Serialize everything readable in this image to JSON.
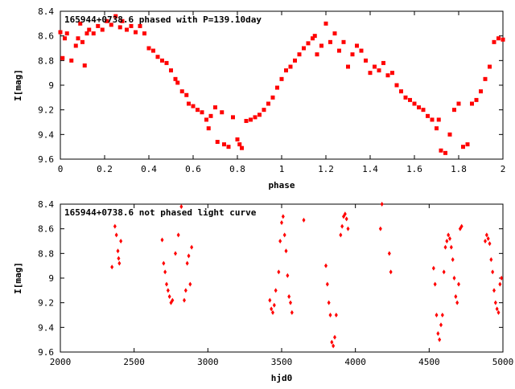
{
  "chart_data": [
    {
      "type": "scatter",
      "title": "165944+0738.6 phased with P=139.10day",
      "xlabel": "phase",
      "ylabel": "I[mag]",
      "xlim": [
        0,
        2
      ],
      "ylim": [
        9.6,
        8.4
      ],
      "y_inverted": true,
      "xticks": [
        0,
        0.2,
        0.4,
        0.6,
        0.8,
        1,
        1.2,
        1.4,
        1.6,
        1.8,
        2
      ],
      "xtick_labels": [
        "0",
        "0.2",
        "0.4",
        "0.6",
        "0.8",
        "1",
        "1.2",
        "1.4",
        "1.6",
        "1.8",
        "2"
      ],
      "yticks": [
        8.4,
        8.6,
        8.8,
        9.0,
        9.2,
        9.4,
        9.6
      ],
      "ytick_labels": [
        "8.4",
        "8.6",
        "8.8",
        "9",
        "9.2",
        "9.4",
        "9.6"
      ],
      "grid": false,
      "marker_color": "#ff0000",
      "marker": "square",
      "points": [
        [
          0.0,
          8.57
        ],
        [
          0.01,
          8.78
        ],
        [
          0.02,
          8.62
        ],
        [
          0.03,
          8.58
        ],
        [
          0.05,
          8.8
        ],
        [
          0.07,
          8.68
        ],
        [
          0.08,
          8.62
        ],
        [
          0.09,
          8.5
        ],
        [
          0.1,
          8.65
        ],
        [
          0.11,
          8.84
        ],
        [
          0.12,
          8.58
        ],
        [
          0.13,
          8.55
        ],
        [
          0.15,
          8.58
        ],
        [
          0.17,
          8.52
        ],
        [
          0.19,
          8.55
        ],
        [
          0.21,
          8.48
        ],
        [
          0.23,
          8.51
        ],
        [
          0.25,
          8.44
        ],
        [
          0.27,
          8.53
        ],
        [
          0.28,
          8.48
        ],
        [
          0.3,
          8.55
        ],
        [
          0.32,
          8.52
        ],
        [
          0.34,
          8.57
        ],
        [
          0.36,
          8.52
        ],
        [
          0.38,
          8.58
        ],
        [
          0.4,
          8.7
        ],
        [
          0.42,
          8.72
        ],
        [
          0.44,
          8.77
        ],
        [
          0.46,
          8.8
        ],
        [
          0.48,
          8.82
        ],
        [
          0.5,
          8.88
        ],
        [
          0.52,
          8.95
        ],
        [
          0.53,
          8.98
        ],
        [
          0.55,
          9.05
        ],
        [
          0.57,
          9.08
        ],
        [
          0.58,
          9.15
        ],
        [
          0.6,
          9.17
        ],
        [
          0.62,
          9.2
        ],
        [
          0.64,
          9.22
        ],
        [
          0.66,
          9.28
        ],
        [
          0.67,
          9.35
        ],
        [
          0.68,
          9.25
        ],
        [
          0.7,
          9.18
        ],
        [
          0.71,
          9.46
        ],
        [
          0.73,
          9.22
        ],
        [
          0.74,
          9.48
        ],
        [
          0.76,
          9.5
        ],
        [
          0.78,
          9.26
        ],
        [
          0.8,
          9.44
        ],
        [
          0.81,
          9.48
        ],
        [
          0.82,
          9.51
        ],
        [
          0.84,
          9.29
        ],
        [
          0.86,
          9.28
        ],
        [
          0.88,
          9.26
        ],
        [
          0.9,
          9.24
        ],
        [
          0.92,
          9.2
        ],
        [
          0.94,
          9.15
        ],
        [
          0.96,
          9.1
        ],
        [
          0.98,
          9.02
        ],
        [
          1.0,
          8.95
        ],
        [
          1.02,
          8.88
        ],
        [
          1.04,
          8.85
        ],
        [
          1.06,
          8.8
        ],
        [
          1.08,
          8.75
        ],
        [
          1.1,
          8.7
        ],
        [
          1.12,
          8.66
        ],
        [
          1.14,
          8.62
        ],
        [
          1.15,
          8.6
        ],
        [
          1.16,
          8.75
        ],
        [
          1.18,
          8.68
        ],
        [
          1.2,
          8.5
        ],
        [
          1.22,
          8.65
        ],
        [
          1.24,
          8.58
        ],
        [
          1.26,
          8.72
        ],
        [
          1.28,
          8.65
        ],
        [
          1.3,
          8.85
        ],
        [
          1.32,
          8.75
        ],
        [
          1.34,
          8.68
        ],
        [
          1.36,
          8.72
        ],
        [
          1.38,
          8.8
        ],
        [
          1.4,
          8.9
        ],
        [
          1.42,
          8.85
        ],
        [
          1.44,
          8.88
        ],
        [
          1.46,
          8.82
        ],
        [
          1.48,
          8.92
        ],
        [
          1.5,
          8.9
        ],
        [
          1.52,
          9.0
        ],
        [
          1.54,
          9.05
        ],
        [
          1.56,
          9.1
        ],
        [
          1.58,
          9.12
        ],
        [
          1.6,
          9.15
        ],
        [
          1.62,
          9.18
        ],
        [
          1.64,
          9.2
        ],
        [
          1.66,
          9.25
        ],
        [
          1.68,
          9.28
        ],
        [
          1.7,
          9.35
        ],
        [
          1.71,
          9.28
        ],
        [
          1.72,
          9.53
        ],
        [
          1.74,
          9.55
        ],
        [
          1.76,
          9.4
        ],
        [
          1.78,
          9.2
        ],
        [
          1.8,
          9.15
        ],
        [
          1.82,
          9.5
        ],
        [
          1.84,
          9.48
        ],
        [
          1.86,
          9.15
        ],
        [
          1.88,
          9.12
        ],
        [
          1.9,
          9.05
        ],
        [
          1.92,
          8.95
        ],
        [
          1.94,
          8.85
        ],
        [
          1.96,
          8.65
        ],
        [
          1.98,
          8.62
        ],
        [
          2.0,
          8.63
        ]
      ]
    },
    {
      "type": "scatter",
      "title": "165944+0738.6 not phased light curve",
      "xlabel": "hjd0",
      "ylabel": "I[mag]",
      "xlim": [
        2000,
        5000
      ],
      "ylim": [
        9.6,
        8.4
      ],
      "y_inverted": true,
      "xticks": [
        2000,
        2500,
        3000,
        3500,
        4000,
        4500,
        5000
      ],
      "xtick_labels": [
        "2000",
        "2500",
        "3000",
        "3500",
        "4000",
        "4500",
        "5000"
      ],
      "yticks": [
        8.4,
        8.6,
        8.8,
        9.0,
        9.2,
        9.4,
        9.6
      ],
      "ytick_labels": [
        "8.4",
        "8.6",
        "8.8",
        "9",
        "9.2",
        "9.4",
        "9.6"
      ],
      "grid": false,
      "marker_color": "#ff0000",
      "marker": "diamond",
      "points": [
        [
          2350,
          8.91
        ],
        [
          2370,
          8.58
        ],
        [
          2380,
          8.65
        ],
        [
          2390,
          8.78
        ],
        [
          2395,
          8.84
        ],
        [
          2400,
          8.88
        ],
        [
          2410,
          8.7
        ],
        [
          2690,
          8.69
        ],
        [
          2700,
          8.88
        ],
        [
          2710,
          8.95
        ],
        [
          2720,
          9.05
        ],
        [
          2730,
          9.1
        ],
        [
          2740,
          9.15
        ],
        [
          2750,
          9.2
        ],
        [
          2760,
          9.18
        ],
        [
          2780,
          8.8
        ],
        [
          2800,
          8.65
        ],
        [
          2820,
          8.42
        ],
        [
          2840,
          9.18
        ],
        [
          2850,
          9.1
        ],
        [
          2860,
          8.88
        ],
        [
          2870,
          8.82
        ],
        [
          2880,
          9.05
        ],
        [
          2890,
          8.75
        ],
        [
          3420,
          9.18
        ],
        [
          3430,
          9.25
        ],
        [
          3440,
          9.28
        ],
        [
          3450,
          9.22
        ],
        [
          3460,
          9.1
        ],
        [
          3480,
          8.95
        ],
        [
          3490,
          8.7
        ],
        [
          3500,
          8.55
        ],
        [
          3510,
          8.5
        ],
        [
          3520,
          8.65
        ],
        [
          3530,
          8.78
        ],
        [
          3540,
          8.98
        ],
        [
          3550,
          9.15
        ],
        [
          3560,
          9.2
        ],
        [
          3570,
          9.28
        ],
        [
          3650,
          8.53
        ],
        [
          3800,
          8.9
        ],
        [
          3810,
          9.05
        ],
        [
          3820,
          9.2
        ],
        [
          3830,
          9.3
        ],
        [
          3840,
          9.52
        ],
        [
          3850,
          9.55
        ],
        [
          3860,
          9.48
        ],
        [
          3870,
          9.3
        ],
        [
          3900,
          8.65
        ],
        [
          3910,
          8.58
        ],
        [
          3920,
          8.5
        ],
        [
          3930,
          8.48
        ],
        [
          3940,
          8.52
        ],
        [
          3950,
          8.6
        ],
        [
          4170,
          8.6
        ],
        [
          4180,
          8.4
        ],
        [
          4230,
          8.8
        ],
        [
          4240,
          8.95
        ],
        [
          4530,
          8.92
        ],
        [
          4540,
          9.05
        ],
        [
          4550,
          9.3
        ],
        [
          4560,
          9.45
        ],
        [
          4570,
          9.5
        ],
        [
          4580,
          9.38
        ],
        [
          4590,
          9.3
        ],
        [
          4600,
          8.95
        ],
        [
          4610,
          8.75
        ],
        [
          4620,
          8.7
        ],
        [
          4630,
          8.65
        ],
        [
          4640,
          8.68
        ],
        [
          4650,
          8.75
        ],
        [
          4660,
          8.85
        ],
        [
          4670,
          9.0
        ],
        [
          4680,
          9.15
        ],
        [
          4690,
          9.2
        ],
        [
          4700,
          9.05
        ],
        [
          4710,
          8.6
        ],
        [
          4720,
          8.58
        ],
        [
          4880,
          8.7
        ],
        [
          4890,
          8.65
        ],
        [
          4900,
          8.68
        ],
        [
          4910,
          8.72
        ],
        [
          4920,
          8.85
        ],
        [
          4930,
          8.95
        ],
        [
          4940,
          9.1
        ],
        [
          4950,
          9.2
        ],
        [
          4960,
          9.25
        ],
        [
          4970,
          9.28
        ],
        [
          4980,
          9.05
        ],
        [
          4990,
          9.0
        ]
      ]
    }
  ]
}
